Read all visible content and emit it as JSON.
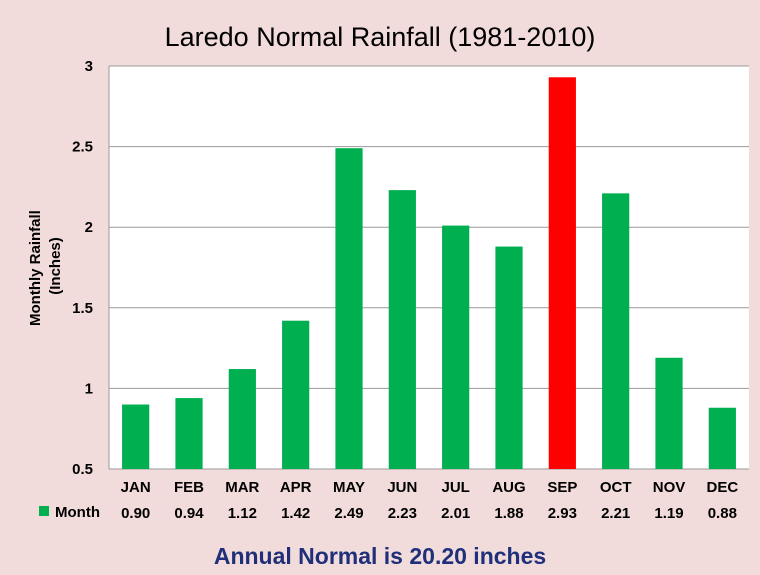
{
  "chart_data": {
    "type": "bar",
    "title": "Laredo Normal Rainfall (1981-2010)",
    "ylabel_line1": "Monthly Rainfall",
    "ylabel_line2": "(Inches)",
    "categories": [
      "JAN",
      "FEB",
      "MAR",
      "APR",
      "MAY",
      "JUN",
      "JUL",
      "AUG",
      "SEP",
      "OCT",
      "NOV",
      "DEC"
    ],
    "series": [
      {
        "name": "Month",
        "values": [
          0.9,
          0.94,
          1.12,
          1.42,
          2.49,
          2.23,
          2.01,
          1.88,
          2.93,
          2.21,
          1.19,
          0.88
        ],
        "color": "#00b050"
      }
    ],
    "value_labels": [
      "0.90",
      "0.94",
      "1.12",
      "1.42",
      "2.49",
      "2.23",
      "2.01",
      "1.88",
      "2.93",
      "2.21",
      "1.19",
      "0.88"
    ],
    "highlight": {
      "category": "SEP",
      "color": "#ff0000"
    },
    "ylim": [
      0.5,
      3
    ],
    "yticks": [
      "0.5",
      "1",
      "1.5",
      "2",
      "2.5",
      "3"
    ],
    "grid": true,
    "legend_placement": "bottom-left data table"
  },
  "footer": "Annual Normal is 20.20 inches"
}
